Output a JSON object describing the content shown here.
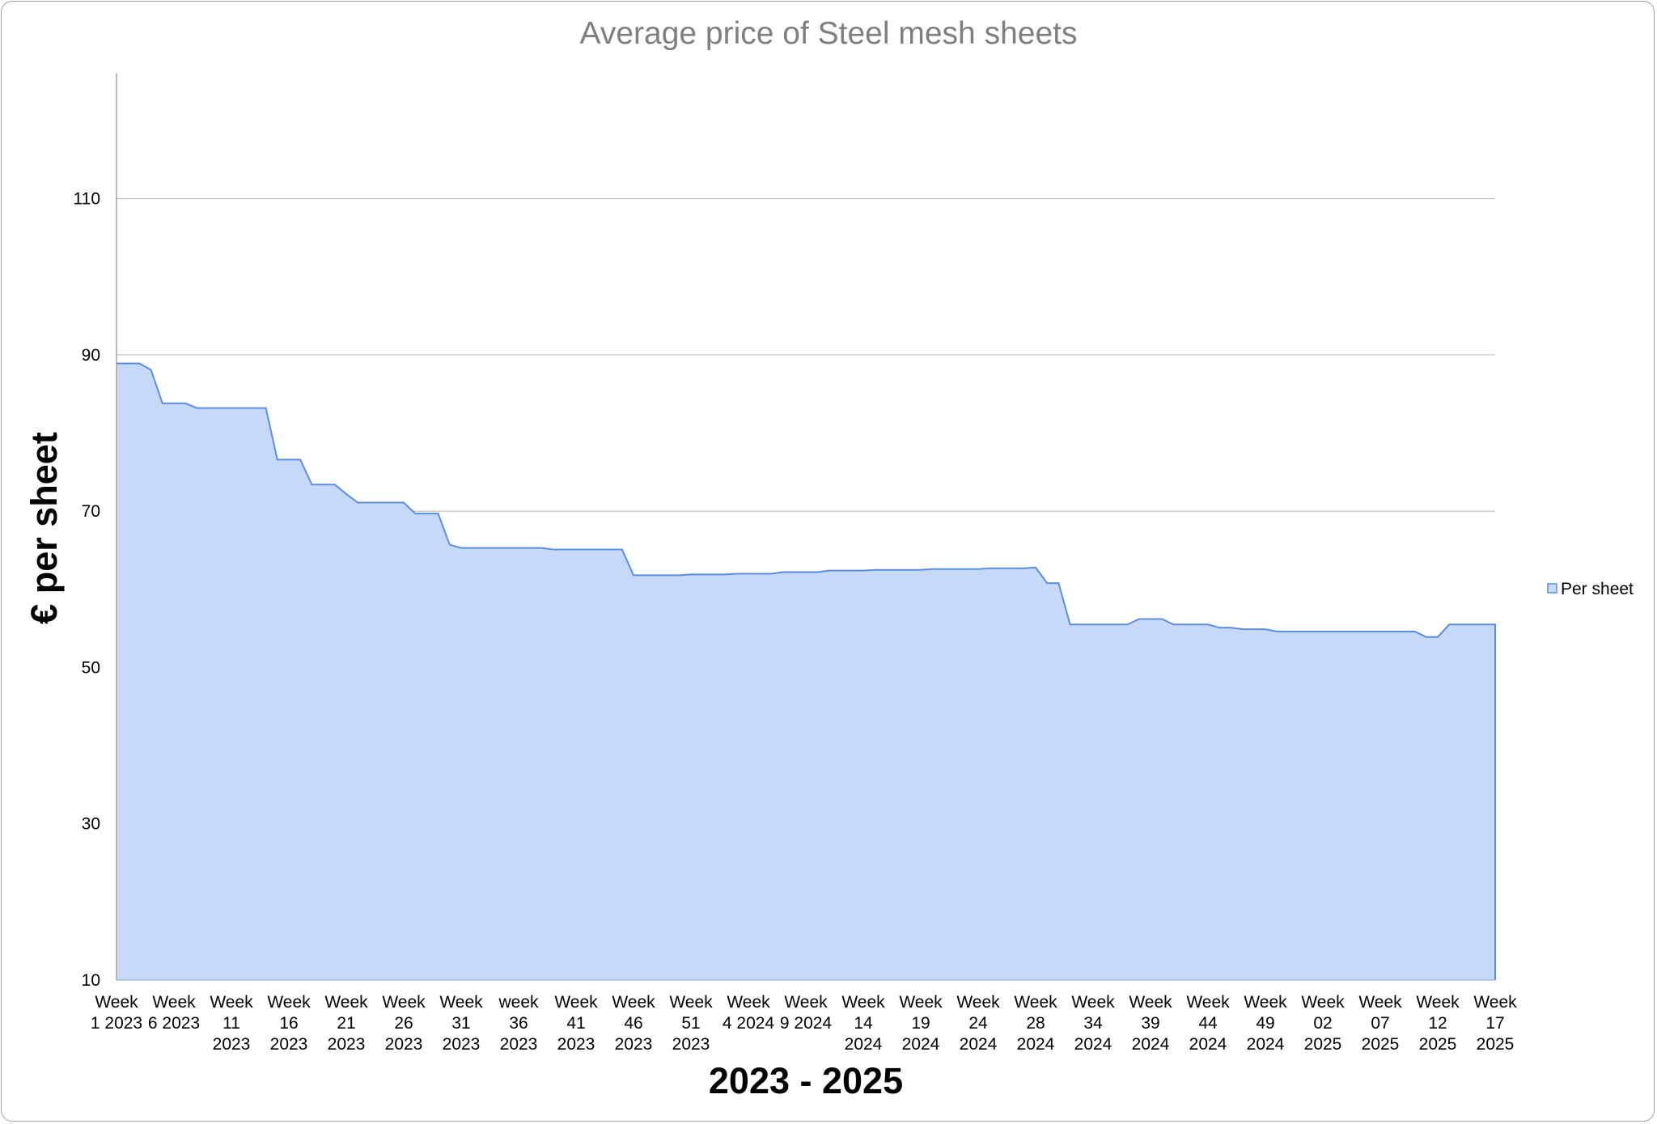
{
  "chart_data": {
    "type": "area",
    "title": "Average price of Steel mesh sheets",
    "xlabel": "2023 - 2025",
    "ylabel": "€ per sheet",
    "ylim": [
      10,
      126
    ],
    "yticks": [
      10,
      30,
      50,
      70,
      90,
      110
    ],
    "grid": true,
    "legend": {
      "position": "right",
      "entries": [
        "Per sheet"
      ]
    },
    "x_labels": [
      "Week\n1 2023",
      "Week\n6 2023",
      "Week\n11\n2023",
      "Week\n16\n2023",
      "Week\n21\n2023",
      "Week\n26\n2023",
      "Week\n31\n2023",
      "week\n36\n2023",
      "Week\n41\n2023",
      "Week\n46\n2023",
      "Week\n51\n2023",
      "Week\n4 2024",
      "Week\n9 2024",
      "Week\n14\n2024",
      "Week\n19\n2024",
      "Week\n24\n2024",
      "Week\n28\n2024",
      "Week\n34\n2024",
      "Week\n39\n2024",
      "Week\n44\n2024",
      "Week\n49\n2024",
      "Week\n02\n2025",
      "Week\n07\n2025",
      "Week\n12\n2025",
      "Week\n17\n2025"
    ],
    "label_interval": 5,
    "series": [
      {
        "name": "Per sheet",
        "color": "#5b8ede",
        "fill": "#c6d9f9",
        "values": [
          88.9,
          88.9,
          88.9,
          88.1,
          83.8,
          83.8,
          83.8,
          83.2,
          83.2,
          83.2,
          83.2,
          83.2,
          83.2,
          83.2,
          76.6,
          76.6,
          76.6,
          73.4,
          73.4,
          73.4,
          72.2,
          71.1,
          71.1,
          71.1,
          71.1,
          71.1,
          69.7,
          69.7,
          69.7,
          65.7,
          65.3,
          65.3,
          65.3,
          65.3,
          65.3,
          65.3,
          65.3,
          65.3,
          65.1,
          65.1,
          65.1,
          65.1,
          65.1,
          65.1,
          65.1,
          61.8,
          61.8,
          61.8,
          61.8,
          61.8,
          61.9,
          61.9,
          61.9,
          61.9,
          62.0,
          62.0,
          62.0,
          62.0,
          62.2,
          62.2,
          62.2,
          62.2,
          62.4,
          62.4,
          62.4,
          62.4,
          62.5,
          62.5,
          62.5,
          62.5,
          62.5,
          62.6,
          62.6,
          62.6,
          62.6,
          62.6,
          62.7,
          62.7,
          62.7,
          62.7,
          62.8,
          60.8,
          60.8,
          55.5,
          55.5,
          55.5,
          55.5,
          55.5,
          55.5,
          56.2,
          56.2,
          56.2,
          55.5,
          55.5,
          55.5,
          55.5,
          55.1,
          55.1,
          54.9,
          54.9,
          54.9,
          54.6,
          54.6,
          54.6,
          54.6,
          54.6,
          54.6,
          54.6,
          54.6,
          54.6,
          54.6,
          54.6,
          54.6,
          54.6,
          53.9,
          53.9,
          55.5,
          55.5,
          55.5,
          55.5,
          55.5
        ]
      }
    ]
  }
}
